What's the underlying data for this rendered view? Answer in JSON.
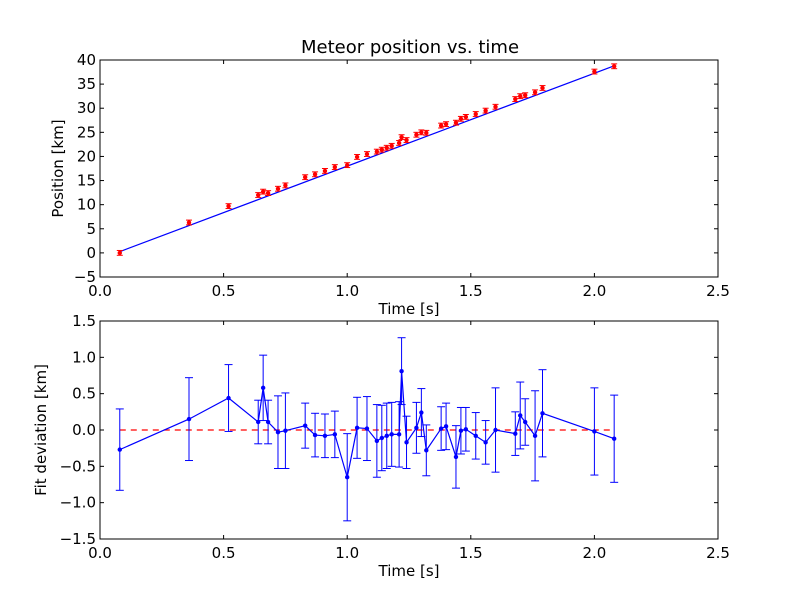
{
  "chart_data": [
    {
      "type": "scatter",
      "title": "Meteor position vs. time",
      "xlabel": "Time [s]",
      "ylabel": "Position [km]",
      "xlim": [
        0.0,
        2.5
      ],
      "ylim": [
        -5,
        40
      ],
      "x_ticks": [
        "0.0",
        "0.5",
        "1.0",
        "1.5",
        "2.0",
        "2.5"
      ],
      "y_ticks": [
        "−5",
        "0",
        "5",
        "10",
        "15",
        "20",
        "25",
        "30",
        "35",
        "40"
      ],
      "grid": false,
      "legend": "none",
      "colors": {
        "points": "#ff0000",
        "fit_line": "#0000ff"
      },
      "fit_line": {
        "x": [
          0.08,
          2.08
        ],
        "y": [
          0.26,
          38.8
        ]
      },
      "series": [
        {
          "x": [
            0.08,
            0.36,
            0.52,
            0.64,
            0.66,
            0.68,
            0.72,
            0.75,
            0.83,
            0.87,
            0.91,
            0.95,
            1.0,
            1.04,
            1.08,
            1.12,
            1.14,
            1.16,
            1.18,
            1.21,
            1.22,
            1.24,
            1.28,
            1.3,
            1.32,
            1.38,
            1.4,
            1.44,
            1.46,
            1.48,
            1.52,
            1.56,
            1.6,
            1.68,
            1.7,
            1.72,
            1.76,
            1.79,
            2.0,
            2.08
          ],
          "y": [
            0.0,
            6.3,
            9.7,
            12.0,
            12.7,
            12.4,
            13.3,
            14.0,
            15.7,
            16.3,
            17.0,
            17.8,
            18.2,
            19.9,
            20.5,
            21.0,
            21.4,
            21.8,
            22.2,
            22.8,
            24.0,
            23.4,
            24.5,
            25.0,
            24.9,
            26.4,
            26.7,
            27.0,
            27.8,
            28.2,
            28.8,
            29.5,
            30.3,
            31.9,
            32.5,
            32.7,
            33.3,
            34.2,
            37.6,
            38.7
          ],
          "yerr": 0.5
        }
      ]
    },
    {
      "type": "line",
      "xlabel": "Time [s]",
      "ylabel": "Fit deviation [km]",
      "xlim": [
        0.0,
        2.5
      ],
      "ylim": [
        -1.5,
        1.5
      ],
      "x_ticks": [
        "0.0",
        "0.5",
        "1.0",
        "1.5",
        "2.0",
        "2.5"
      ],
      "y_ticks": [
        "−1.5",
        "−1.0",
        "−0.5",
        "0.0",
        "0.5",
        "1.0",
        "1.5"
      ],
      "grid": false,
      "legend": "none",
      "colors": {
        "series": "#0000ff",
        "reference": "#ff0000"
      },
      "reference_line": {
        "y": 0.0,
        "x": [
          0.08,
          2.08
        ],
        "style": "dashed"
      },
      "series": [
        {
          "x": [
            0.08,
            0.36,
            0.52,
            0.64,
            0.66,
            0.68,
            0.72,
            0.75,
            0.83,
            0.87,
            0.91,
            0.95,
            1.0,
            1.04,
            1.08,
            1.12,
            1.14,
            1.16,
            1.18,
            1.21,
            1.22,
            1.24,
            1.28,
            1.3,
            1.32,
            1.38,
            1.4,
            1.44,
            1.46,
            1.48,
            1.52,
            1.56,
            1.6,
            1.68,
            1.7,
            1.72,
            1.76,
            1.79,
            2.0,
            2.08
          ],
          "y": [
            -0.27,
            0.15,
            0.44,
            0.11,
            0.58,
            0.11,
            -0.03,
            -0.01,
            0.06,
            -0.07,
            -0.08,
            -0.06,
            -0.65,
            0.03,
            0.02,
            -0.15,
            -0.11,
            -0.08,
            -0.06,
            -0.06,
            0.81,
            -0.17,
            0.03,
            0.24,
            -0.28,
            0.02,
            0.05,
            -0.37,
            -0.01,
            0.01,
            -0.08,
            -0.17,
            0.0,
            -0.05,
            0.2,
            0.11,
            -0.08,
            0.23,
            -0.02,
            -0.12
          ],
          "yerr": [
            0.56,
            0.57,
            0.46,
            0.3,
            0.45,
            0.3,
            0.5,
            0.52,
            0.31,
            0.3,
            0.3,
            0.32,
            0.6,
            0.42,
            0.44,
            0.5,
            0.45,
            0.45,
            0.44,
            0.45,
            0.46,
            0.36,
            0.35,
            0.33,
            0.35,
            0.3,
            0.32,
            0.43,
            0.32,
            0.3,
            0.32,
            0.3,
            0.58,
            0.3,
            0.46,
            0.32,
            0.62,
            0.6,
            0.6,
            0.6
          ]
        }
      ]
    }
  ]
}
